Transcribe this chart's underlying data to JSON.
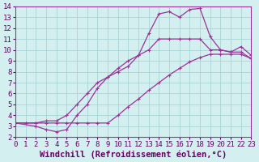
{
  "xlabel": "Windchill (Refroidissement éolien,°C)",
  "background_color": "#d4efef",
  "grid_color": "#aad4d4",
  "line_color": "#993399",
  "xlim": [
    0,
    23
  ],
  "ylim": [
    2,
    14
  ],
  "xticks": [
    0,
    1,
    2,
    3,
    4,
    5,
    6,
    7,
    8,
    9,
    10,
    11,
    12,
    13,
    14,
    15,
    16,
    17,
    18,
    19,
    20,
    21,
    22,
    23
  ],
  "yticks": [
    2,
    3,
    4,
    5,
    6,
    7,
    8,
    9,
    10,
    11,
    12,
    13,
    14
  ],
  "series1_x": [
    0,
    1,
    2,
    3,
    4,
    5,
    6,
    7,
    8,
    9,
    10,
    11,
    12,
    13,
    14,
    15,
    16,
    17,
    18,
    19,
    20,
    21,
    22,
    23
  ],
  "series1_y": [
    3.3,
    3.3,
    3.3,
    3.3,
    3.3,
    3.3,
    3.3,
    3.3,
    3.3,
    3.3,
    4.0,
    4.8,
    5.5,
    6.3,
    7.0,
    7.7,
    8.3,
    8.9,
    9.3,
    9.6,
    9.6,
    9.6,
    9.6,
    9.2
  ],
  "series2_x": [
    0,
    1,
    2,
    3,
    4,
    5,
    6,
    7,
    8,
    9,
    10,
    11,
    12,
    13,
    14,
    15,
    16,
    17,
    18,
    19,
    20,
    21,
    22,
    23
  ],
  "series2_y": [
    3.3,
    3.3,
    3.3,
    3.5,
    3.5,
    4.0,
    5.0,
    6.0,
    7.0,
    7.5,
    8.3,
    9.0,
    9.5,
    10.0,
    11.0,
    11.0,
    11.0,
    11.0,
    11.0,
    10.0,
    10.0,
    9.8,
    9.8,
    9.2
  ],
  "series3_x": [
    0,
    2,
    3,
    4,
    5,
    6,
    7,
    8,
    9,
    10,
    11,
    12,
    13,
    14,
    15,
    16,
    17,
    18,
    19,
    20,
    21,
    22,
    23
  ],
  "series3_y": [
    3.3,
    3.0,
    2.7,
    2.5,
    2.7,
    4.0,
    5.0,
    6.5,
    7.5,
    8.0,
    8.5,
    9.5,
    11.5,
    13.3,
    13.5,
    13.0,
    13.7,
    13.8,
    11.2,
    10.0,
    9.8,
    10.3,
    9.5
  ],
  "tick_fontsize": 6.5,
  "xlabel_fontsize": 7.5
}
